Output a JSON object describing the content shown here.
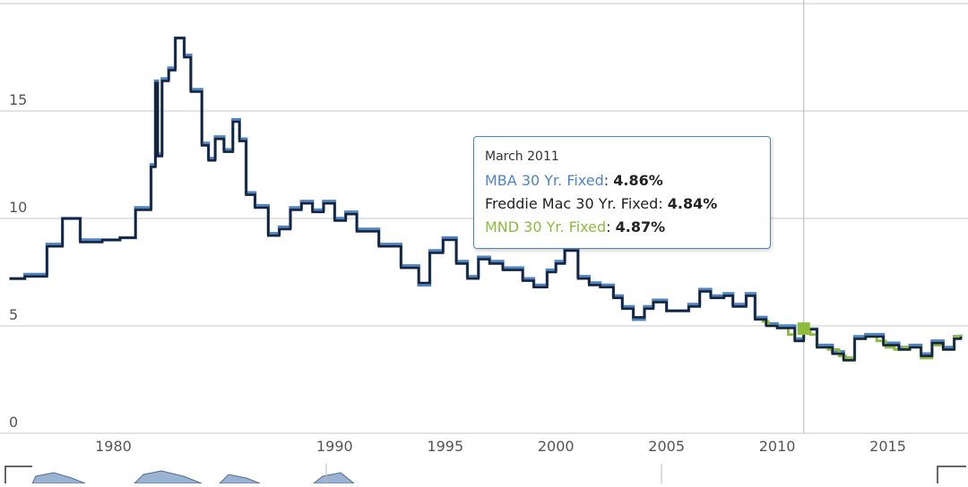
{
  "chart_data": {
    "type": "line",
    "title": "",
    "xlabel": "",
    "ylabel": "",
    "xlim": [
      1975.2,
      2018.3
    ],
    "ylim": [
      0,
      20
    ],
    "y_ticks": [
      0,
      5,
      10,
      15
    ],
    "x_ticks": [
      1980,
      1990,
      1995,
      2000,
      2005,
      2010,
      2015
    ],
    "grid": "horizontal",
    "crosshair_x": 2011.2,
    "series": [
      {
        "name": "MBA 30 Yr. Fixed",
        "color": "#4f84c4",
        "points": [
          [
            1975.3,
            7.2
          ],
          [
            1976,
            7.4
          ],
          [
            1977,
            8.8
          ],
          [
            1977.7,
            10.0
          ],
          [
            1978.5,
            9.0
          ],
          [
            1979.5,
            9.0
          ],
          [
            1980.3,
            9.1
          ],
          [
            1981,
            10.5
          ],
          [
            1981.7,
            12.5
          ],
          [
            1981.9,
            16.4
          ],
          [
            1982,
            13.0
          ],
          [
            1982.2,
            16.5
          ],
          [
            1982.5,
            17.0
          ],
          [
            1982.8,
            18.4
          ],
          [
            1983.2,
            17.6
          ],
          [
            1983.5,
            16.0
          ],
          [
            1984,
            13.5
          ],
          [
            1984.3,
            12.8
          ],
          [
            1984.6,
            13.8
          ],
          [
            1985,
            13.2
          ],
          [
            1985.4,
            14.6
          ],
          [
            1985.7,
            13.7
          ],
          [
            1986,
            11.2
          ],
          [
            1986.4,
            10.6
          ],
          [
            1987,
            9.3
          ],
          [
            1987.5,
            9.6
          ],
          [
            1988,
            10.5
          ],
          [
            1988.5,
            10.8
          ],
          [
            1989,
            10.4
          ],
          [
            1989.5,
            10.8
          ],
          [
            1990,
            10.0
          ],
          [
            1990.5,
            10.3
          ],
          [
            1991,
            9.5
          ],
          [
            1992,
            8.8
          ],
          [
            1993,
            7.8
          ],
          [
            1993.8,
            6.9
          ],
          [
            1994.3,
            8.5
          ],
          [
            1994.9,
            9.1
          ],
          [
            1995.5,
            8.0
          ],
          [
            1996,
            7.3
          ],
          [
            1996.5,
            8.2
          ],
          [
            1997,
            8.0
          ],
          [
            1997.6,
            7.7
          ],
          [
            1998.5,
            7.2
          ],
          [
            1999,
            6.9
          ],
          [
            1999.6,
            7.6
          ],
          [
            2000,
            8.0
          ],
          [
            2000.4,
            8.6
          ],
          [
            2001,
            7.3
          ],
          [
            2001.5,
            7.0
          ],
          [
            2002,
            6.9
          ],
          [
            2002.6,
            6.4
          ],
          [
            2003,
            5.9
          ],
          [
            2003.5,
            5.3
          ],
          [
            2004,
            5.9
          ],
          [
            2004.4,
            6.2
          ],
          [
            2005,
            5.7
          ],
          [
            2006,
            6.0
          ],
          [
            2006.5,
            6.7
          ],
          [
            2007,
            6.4
          ],
          [
            2007.6,
            6.5
          ],
          [
            2008,
            6.0
          ],
          [
            2008.6,
            6.5
          ],
          [
            2009,
            5.4
          ],
          [
            2009.5,
            5.1
          ],
          [
            2010,
            5.0
          ],
          [
            2010.8,
            4.4
          ],
          [
            2011.2,
            4.86
          ],
          [
            2011.8,
            4.1
          ],
          [
            2012.5,
            3.8
          ],
          [
            2013,
            3.5
          ],
          [
            2013.5,
            4.5
          ],
          [
            2014,
            4.6
          ],
          [
            2014.8,
            4.2
          ],
          [
            2015.5,
            4.0
          ],
          [
            2016,
            4.1
          ],
          [
            2016.5,
            3.7
          ],
          [
            2017,
            4.3
          ],
          [
            2017.5,
            4.0
          ],
          [
            2018,
            4.5
          ],
          [
            2018.3,
            4.6
          ]
        ]
      },
      {
        "name": "Freddie Mac 30 Yr. Fixed",
        "color": "#16233a",
        "points": [
          [
            1975.3,
            7.2
          ],
          [
            1976,
            7.3
          ],
          [
            1977,
            8.7
          ],
          [
            1977.7,
            10.0
          ],
          [
            1978.5,
            8.9
          ],
          [
            1979.5,
            9.0
          ],
          [
            1980.3,
            9.1
          ],
          [
            1981,
            10.4
          ],
          [
            1981.7,
            12.4
          ],
          [
            1981.9,
            16.3
          ],
          [
            1982,
            12.9
          ],
          [
            1982.2,
            16.4
          ],
          [
            1982.5,
            16.9
          ],
          [
            1982.8,
            18.4
          ],
          [
            1983.2,
            17.5
          ],
          [
            1983.5,
            15.9
          ],
          [
            1984,
            13.4
          ],
          [
            1984.3,
            12.7
          ],
          [
            1984.6,
            13.7
          ],
          [
            1985,
            13.1
          ],
          [
            1985.4,
            14.5
          ],
          [
            1985.7,
            13.6
          ],
          [
            1986,
            11.1
          ],
          [
            1986.4,
            10.5
          ],
          [
            1987,
            9.2
          ],
          [
            1987.5,
            9.5
          ],
          [
            1988,
            10.4
          ],
          [
            1988.5,
            10.7
          ],
          [
            1989,
            10.3
          ],
          [
            1989.5,
            10.7
          ],
          [
            1990,
            9.9
          ],
          [
            1990.5,
            10.2
          ],
          [
            1991,
            9.4
          ],
          [
            1992,
            8.7
          ],
          [
            1993,
            7.7
          ],
          [
            1993.8,
            7.0
          ],
          [
            1994.3,
            8.4
          ],
          [
            1994.9,
            9.0
          ],
          [
            1995.5,
            7.9
          ],
          [
            1996,
            7.2
          ],
          [
            1996.5,
            8.1
          ],
          [
            1997,
            7.9
          ],
          [
            1997.6,
            7.6
          ],
          [
            1998.5,
            7.1
          ],
          [
            1999,
            6.8
          ],
          [
            1999.6,
            7.5
          ],
          [
            2000,
            7.9
          ],
          [
            2000.4,
            8.5
          ],
          [
            2001,
            7.2
          ],
          [
            2001.5,
            6.9
          ],
          [
            2002,
            6.8
          ],
          [
            2002.6,
            6.3
          ],
          [
            2003,
            5.8
          ],
          [
            2003.5,
            5.4
          ],
          [
            2004,
            5.8
          ],
          [
            2004.4,
            6.1
          ],
          [
            2005,
            5.7
          ],
          [
            2006,
            5.9
          ],
          [
            2006.5,
            6.6
          ],
          [
            2007,
            6.3
          ],
          [
            2007.6,
            6.4
          ],
          [
            2008,
            5.9
          ],
          [
            2008.6,
            6.4
          ],
          [
            2009,
            5.3
          ],
          [
            2009.5,
            5.0
          ],
          [
            2010,
            4.9
          ],
          [
            2010.8,
            4.3
          ],
          [
            2011.2,
            4.84
          ],
          [
            2011.8,
            4.0
          ],
          [
            2012.5,
            3.7
          ],
          [
            2013,
            3.4
          ],
          [
            2013.5,
            4.4
          ],
          [
            2014,
            4.5
          ],
          [
            2014.8,
            4.1
          ],
          [
            2015.5,
            3.9
          ],
          [
            2016,
            4.0
          ],
          [
            2016.5,
            3.6
          ],
          [
            2017,
            4.2
          ],
          [
            2017.5,
            3.9
          ],
          [
            2018,
            4.4
          ],
          [
            2018.3,
            4.5
          ]
        ]
      },
      {
        "name": "MND 30 Yr. Fixed",
        "color": "#8dbb3e",
        "points": [
          [
            2009.3,
            5.2
          ],
          [
            2009.6,
            5.0
          ],
          [
            2010,
            4.9
          ],
          [
            2010.5,
            4.6
          ],
          [
            2010.8,
            4.3
          ],
          [
            2011.2,
            4.87
          ],
          [
            2011.5,
            4.6
          ],
          [
            2011.8,
            4.0
          ],
          [
            2012.3,
            3.9
          ],
          [
            2012.8,
            3.6
          ],
          [
            2013.1,
            3.5
          ],
          [
            2013.5,
            4.4
          ],
          [
            2014,
            4.5
          ],
          [
            2014.5,
            4.3
          ],
          [
            2014.9,
            4.0
          ],
          [
            2015.3,
            3.9
          ],
          [
            2015.7,
            4.0
          ],
          [
            2016,
            4.0
          ],
          [
            2016.5,
            3.5
          ],
          [
            2017,
            4.1
          ],
          [
            2017.5,
            3.9
          ],
          [
            2018,
            4.5
          ],
          [
            2018.3,
            4.6
          ]
        ]
      }
    ],
    "tooltip": {
      "title": "March 2011",
      "rows": [
        {
          "label": "MBA 30 Yr. Fixed",
          "value": "4.86%",
          "color": "#4f84c4"
        },
        {
          "label": "Freddie Mac 30 Yr. Fixed",
          "value": "4.84%",
          "color": "#222222"
        },
        {
          "label": "MND 30 Yr. Fixed",
          "value": "4.87%",
          "color": "#8dbb3e"
        }
      ]
    }
  }
}
